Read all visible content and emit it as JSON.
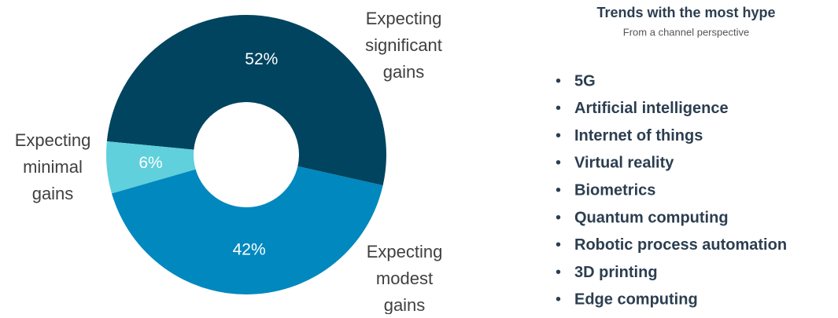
{
  "chart_data": {
    "type": "donut",
    "categories": [
      "Expecting significant gains",
      "Expecting modest gains",
      "Expecting minimal gains"
    ],
    "values": [
      52,
      42,
      6
    ],
    "value_labels": [
      "52%",
      "42%",
      "6%"
    ],
    "colors": [
      "#00445f",
      "#0088bf",
      "#5fd0dc"
    ]
  },
  "list": {
    "title": "Trends with the most hype",
    "subtitle": "From a channel perspective",
    "items": [
      "5G",
      "Artificial intelligence",
      "Internet of things",
      "Virtual reality",
      "Biometrics",
      "Quantum computing",
      "Robotic process automation",
      "3D printing",
      "Edge computing"
    ]
  }
}
